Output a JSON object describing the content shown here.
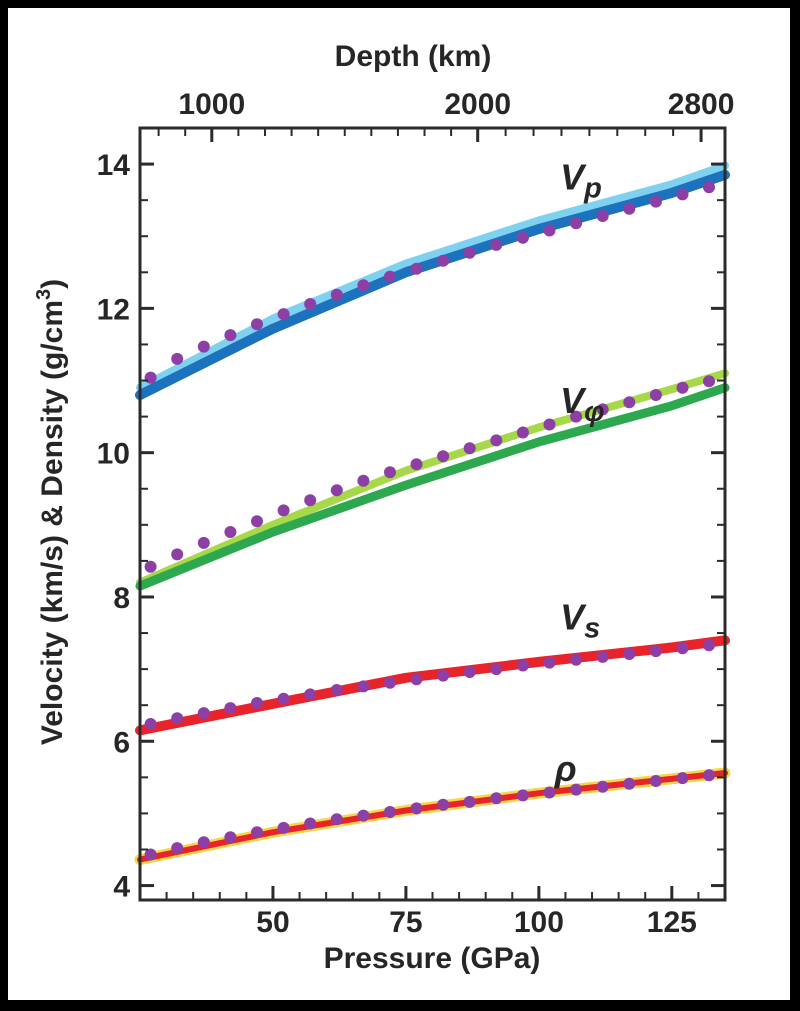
{
  "chart_data": {
    "type": "line",
    "xlabel": "Pressure (GPa)",
    "ylabel_main": "Velocity (km/s) & Density (g/cm",
    "ylabel_sup": "3",
    "ylabel_close": ")",
    "top_axis_label": "Depth (km)",
    "xlim": [
      25,
      135
    ],
    "ylim": [
      3.8,
      14.5
    ],
    "x_ticks": [
      50,
      75,
      100,
      125
    ],
    "y_ticks": [
      4,
      6,
      8,
      10,
      12,
      14
    ],
    "top_ticks": [
      {
        "label": "1000",
        "pressure": 38.5
      },
      {
        "label": "2000",
        "pressure": 88.5
      },
      {
        "label": "2800",
        "pressure": 130.5
      }
    ],
    "grid": false,
    "series": [
      {
        "label": "V",
        "subscript": "p",
        "label_pos": {
          "x": 104,
          "y": 13.65
        },
        "lines": [
          {
            "color": "#7fd1f0",
            "width": 8,
            "x": [
              25,
              50,
              75,
              100,
              125,
              135
            ],
            "y": [
              10.9,
              11.86,
              12.62,
              13.22,
              13.72,
              13.98
            ]
          },
          {
            "color": "#1d72bd",
            "width": 10,
            "x": [
              25,
              50,
              75,
              100,
              125,
              135
            ],
            "y": [
              10.8,
              11.72,
              12.5,
              13.1,
              13.6,
              13.85
            ]
          }
        ],
        "points": {
          "color": "#8e3fa6",
          "x": [
            27,
            32,
            37,
            42,
            47,
            52,
            57,
            62,
            67,
            72,
            77,
            82,
            87,
            92,
            97,
            102,
            107,
            112,
            117,
            122,
            127,
            132
          ],
          "y": [
            11.04,
            11.3,
            11.47,
            11.63,
            11.78,
            11.92,
            12.06,
            12.19,
            12.32,
            12.44,
            12.55,
            12.66,
            12.77,
            12.88,
            12.98,
            13.08,
            13.18,
            13.28,
            13.38,
            13.48,
            13.58,
            13.68
          ]
        }
      },
      {
        "label": "V",
        "subscript": "φ",
        "label_pos": {
          "x": 104,
          "y": 10.55
        },
        "lines": [
          {
            "color": "#a6d84a",
            "width": 8,
            "x": [
              25,
              50,
              75,
              100,
              125,
              135
            ],
            "y": [
              8.2,
              9.0,
              9.75,
              10.35,
              10.88,
              11.1
            ]
          },
          {
            "color": "#2ea84e",
            "width": 9,
            "x": [
              25,
              50,
              75,
              100,
              125,
              135
            ],
            "y": [
              8.15,
              8.9,
              9.55,
              10.15,
              10.65,
              10.9
            ]
          }
        ],
        "points": {
          "color": "#8e3fa6",
          "x": [
            27,
            32,
            37,
            42,
            47,
            52,
            57,
            62,
            67,
            72,
            77,
            82,
            87,
            92,
            97,
            102,
            107,
            112,
            117,
            122,
            127,
            132
          ],
          "y": [
            8.42,
            8.59,
            8.75,
            8.9,
            9.05,
            9.2,
            9.34,
            9.48,
            9.61,
            9.73,
            9.84,
            9.95,
            10.06,
            10.17,
            10.28,
            10.39,
            10.5,
            10.6,
            10.7,
            10.8,
            10.9,
            10.99
          ]
        }
      },
      {
        "label": "V",
        "subscript": "s",
        "label_pos": {
          "x": 104,
          "y": 7.55
        },
        "lines": [
          {
            "color": "#e8242a",
            "width": 10,
            "x": [
              25,
              50,
              75,
              100,
              125,
              135
            ],
            "y": [
              6.15,
              6.52,
              6.88,
              7.1,
              7.3,
              7.4
            ]
          }
        ],
        "points": {
          "color": "#8e3fa6",
          "x": [
            27,
            32,
            37,
            42,
            47,
            52,
            57,
            62,
            67,
            72,
            77,
            82,
            87,
            92,
            97,
            102,
            107,
            112,
            117,
            122,
            127,
            132
          ],
          "y": [
            6.24,
            6.32,
            6.39,
            6.46,
            6.53,
            6.59,
            6.65,
            6.71,
            6.76,
            6.81,
            6.86,
            6.91,
            6.96,
            7.0,
            7.05,
            7.09,
            7.13,
            7.17,
            7.21,
            7.25,
            7.29,
            7.33
          ]
        }
      },
      {
        "label": "ρ",
        "subscript": "",
        "label_pos": {
          "x": 103,
          "y": 5.45
        },
        "lines": [
          {
            "color": "#f2d84a",
            "width": 11,
            "x": [
              25,
              50,
              75,
              100,
              125,
              135
            ],
            "y": [
              4.36,
              4.74,
              5.04,
              5.28,
              5.48,
              5.56
            ]
          },
          {
            "color": "#e8242a",
            "width": 6,
            "x": [
              25,
              50,
              75,
              100,
              125,
              135
            ],
            "y": [
              4.36,
              4.74,
              5.04,
              5.28,
              5.48,
              5.56
            ]
          }
        ],
        "points": {
          "color": "#8e3fa6",
          "x": [
            27,
            32,
            37,
            42,
            47,
            52,
            57,
            62,
            67,
            72,
            77,
            82,
            87,
            92,
            97,
            102,
            107,
            112,
            117,
            122,
            127,
            132
          ],
          "y": [
            4.43,
            4.52,
            4.6,
            4.67,
            4.74,
            4.8,
            4.86,
            4.92,
            4.97,
            5.02,
            5.07,
            5.12,
            5.16,
            5.21,
            5.25,
            5.29,
            5.33,
            5.37,
            5.41,
            5.45,
            5.49,
            5.53
          ]
        }
      }
    ]
  }
}
